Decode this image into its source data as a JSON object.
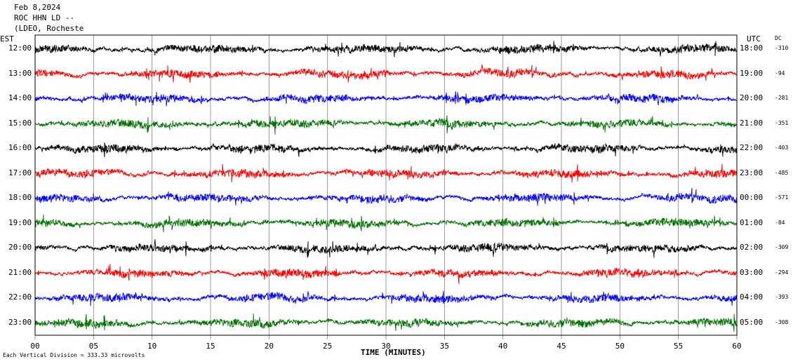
{
  "header": {
    "date": "Feb 8,2024",
    "station": "ROC HHN LD --",
    "network": "(LDEO, Rocheste"
  },
  "chart_data": {
    "type": "line",
    "title": "",
    "xlabel": "TIME (MINUTES)",
    "ylabel_left": "EST",
    "ylabel_right": "UTC",
    "dc_label": "DC",
    "x_ticks": [
      "00",
      "05",
      "10",
      "15",
      "20",
      "25",
      "30",
      "35",
      "40",
      "45",
      "50",
      "55",
      "60"
    ],
    "xlim": [
      0,
      60
    ],
    "trace_colors": [
      "#000000",
      "#ff0000",
      "#0000ff",
      "#007000"
    ],
    "series": [
      {
        "est": "12:00",
        "utc": "18:00",
        "dc": "-310"
      },
      {
        "est": "13:00",
        "utc": "19:00",
        "dc": "-94"
      },
      {
        "est": "14:00",
        "utc": "20:00",
        "dc": "-281"
      },
      {
        "est": "15:00",
        "utc": "21:00",
        "dc": "-351"
      },
      {
        "est": "16:00",
        "utc": "22:00",
        "dc": "-403"
      },
      {
        "est": "17:00",
        "utc": "23:00",
        "dc": "-485"
      },
      {
        "est": "18:00",
        "utc": "00:00",
        "dc": "-571"
      },
      {
        "est": "19:00",
        "utc": "01:00",
        "dc": "-84"
      },
      {
        "est": "20:00",
        "utc": "02:00",
        "dc": "-309"
      },
      {
        "est": "21:00",
        "utc": "03:00",
        "dc": "-294"
      },
      {
        "est": "22:00",
        "utc": "04:00",
        "dc": "-393"
      },
      {
        "est": "23:00",
        "utc": "05:00",
        "dc": "-308"
      }
    ],
    "footer_note": "Each Vertical Division =  333.33 microvolts"
  }
}
